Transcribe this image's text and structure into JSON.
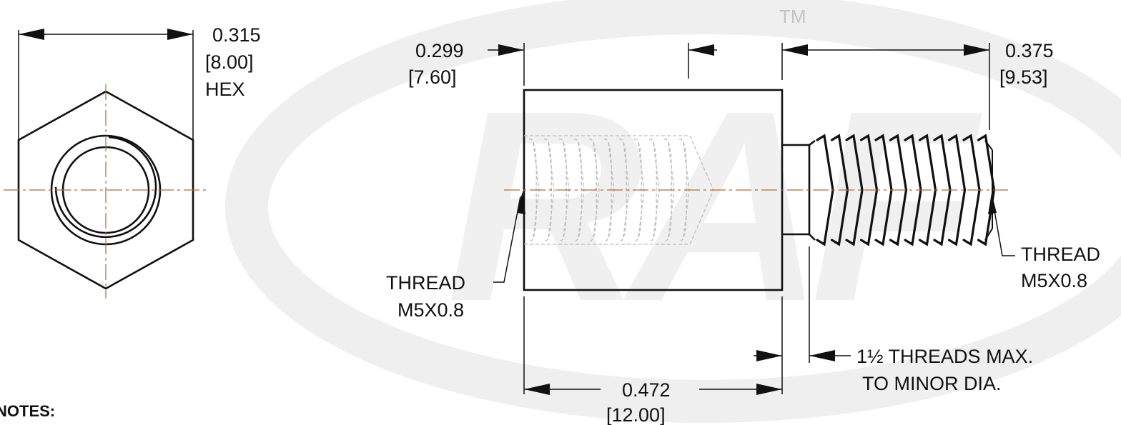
{
  "drawing": {
    "trademark": "TM",
    "watermark_logo": "RAF",
    "hex_across_flats": {
      "inch": "0.315",
      "mm": "[8.00]",
      "suffix": "HEX"
    },
    "body_diameter": {
      "inch": "0.299",
      "mm": "[7.60]"
    },
    "stud_length": {
      "inch": "0.375",
      "mm": "[9.53]"
    },
    "body_length": {
      "inch": "0.472",
      "mm": "[12.00]"
    },
    "internal_thread": {
      "label": "THREAD",
      "size": "M5X0.8"
    },
    "external_thread": {
      "label": "THREAD",
      "size": "M5X0.8"
    },
    "thread_note": {
      "line1": "1½ THREADS MAX.",
      "line2": "TO MINOR DIA."
    },
    "notes_heading": "NOTES:"
  },
  "colors": {
    "line": "#111111",
    "centerline": "#b06a3a",
    "hidden_line": "#bdbdbd",
    "watermark": "#eeeeee"
  }
}
